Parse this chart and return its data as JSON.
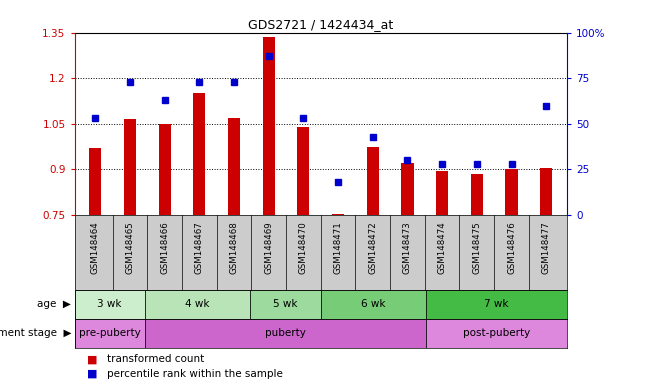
{
  "title": "GDS2721 / 1424434_at",
  "samples": [
    "GSM148464",
    "GSM148465",
    "GSM148466",
    "GSM148467",
    "GSM148468",
    "GSM148469",
    "GSM148470",
    "GSM148471",
    "GSM148472",
    "GSM148473",
    "GSM148474",
    "GSM148475",
    "GSM148476",
    "GSM148477"
  ],
  "red_values": [
    0.97,
    1.065,
    1.05,
    1.15,
    1.07,
    1.335,
    1.04,
    0.755,
    0.975,
    0.92,
    0.895,
    0.885,
    0.9,
    0.905
  ],
  "blue_values": [
    0.53,
    0.73,
    0.63,
    0.73,
    0.73,
    0.87,
    0.53,
    0.18,
    0.43,
    0.3,
    0.28,
    0.28,
    0.28,
    0.6
  ],
  "y_min": 0.75,
  "y_max": 1.35,
  "y_ticks_red": [
    0.75,
    0.9,
    1.05,
    1.2,
    1.35
  ],
  "y_ticks_blue": [
    0,
    25,
    50,
    75,
    100
  ],
  "grid_lines": [
    0.9,
    1.05,
    1.2
  ],
  "bar_color": "#cc0000",
  "dot_color": "#0000cc",
  "age_groups": [
    {
      "label": "3 wk",
      "start": 0,
      "end": 2,
      "color": "#cceecc"
    },
    {
      "label": "4 wk",
      "start": 2,
      "end": 5,
      "color": "#aaddaa"
    },
    {
      "label": "5 wk",
      "start": 5,
      "end": 7,
      "color": "#88cc88"
    },
    {
      "label": "6 wk",
      "start": 7,
      "end": 10,
      "color": "#66bb66"
    },
    {
      "label": "7 wk",
      "start": 10,
      "end": 14,
      "color": "#44bb44"
    }
  ],
  "dev_groups": [
    {
      "label": "pre-puberty",
      "start": 0,
      "end": 2,
      "color": "#dd88dd"
    },
    {
      "label": "puberty",
      "start": 2,
      "end": 10,
      "color": "#cc66cc"
    },
    {
      "label": "post-puberty",
      "start": 10,
      "end": 14,
      "color": "#dd88dd"
    }
  ],
  "legend_red": "transformed count",
  "legend_blue": "percentile rank within the sample",
  "sample_bg": "#cccccc",
  "bar_width": 0.35
}
